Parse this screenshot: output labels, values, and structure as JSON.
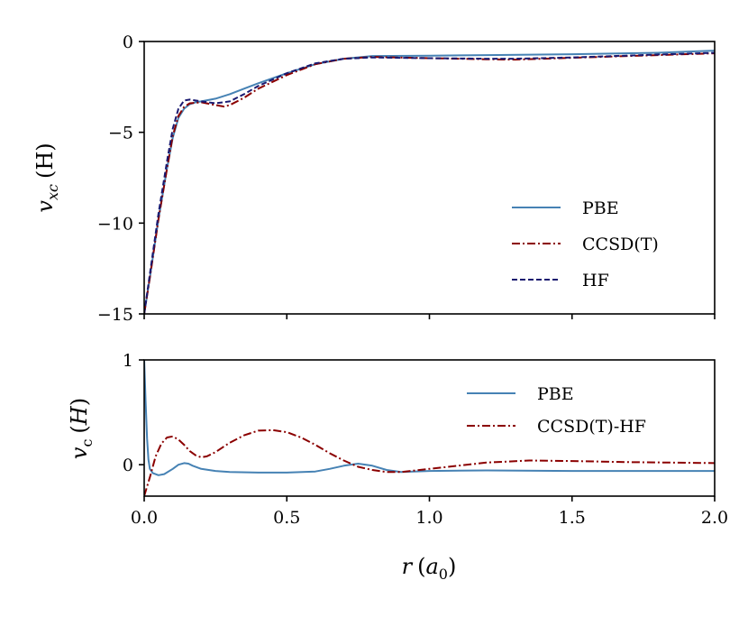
{
  "chart_data": [
    {
      "type": "line",
      "panel": "top",
      "title": "",
      "xlabel": "",
      "ylabel": "v_xc (H)",
      "ylabel_parts": {
        "var": "v",
        "sub": "xc",
        "unit": "(H)"
      },
      "xlim": [
        0.0,
        2.0
      ],
      "ylim": [
        -15,
        0
      ],
      "xticks": [
        0.0,
        0.5,
        1.0,
        1.5,
        2.0
      ],
      "yticks": [
        0,
        -5,
        -10,
        -15
      ],
      "ytick_labels": [
        "0",
        "−5",
        "−10",
        "−15"
      ],
      "legend_position": "center-right",
      "series": [
        {
          "name": "PBE",
          "color": "#4682b4",
          "dash": "solid",
          "x": [
            0.0,
            0.02,
            0.05,
            0.08,
            0.1,
            0.12,
            0.14,
            0.16,
            0.18,
            0.2,
            0.25,
            0.3,
            0.35,
            0.4,
            0.5,
            0.6,
            0.7,
            0.8,
            1.0,
            1.2,
            1.5,
            1.8,
            2.0
          ],
          "y": [
            -15,
            -13.0,
            -9.8,
            -7.0,
            -5.3,
            -4.2,
            -3.7,
            -3.45,
            -3.35,
            -3.3,
            -3.15,
            -2.9,
            -2.6,
            -2.3,
            -1.75,
            -1.25,
            -0.95,
            -0.8,
            -0.78,
            -0.75,
            -0.7,
            -0.62,
            -0.5
          ]
        },
        {
          "name": "CCSD(T)",
          "color": "#8b0000",
          "dash": "dashdot",
          "x": [
            0.0,
            0.02,
            0.05,
            0.08,
            0.1,
            0.12,
            0.14,
            0.16,
            0.2,
            0.25,
            0.28,
            0.3,
            0.35,
            0.4,
            0.5,
            0.6,
            0.7,
            0.8,
            1.0,
            1.2,
            1.3,
            1.5,
            1.8,
            2.0
          ],
          "y": [
            -15,
            -13.0,
            -9.8,
            -7.0,
            -5.2,
            -4.1,
            -3.6,
            -3.4,
            -3.35,
            -3.5,
            -3.58,
            -3.5,
            -3.1,
            -2.6,
            -1.85,
            -1.25,
            -0.95,
            -0.85,
            -0.92,
            -0.98,
            -1.0,
            -0.9,
            -0.75,
            -0.65
          ]
        },
        {
          "name": "HF",
          "color": "#191970",
          "dash": "dashed",
          "x": [
            0.0,
            0.02,
            0.05,
            0.08,
            0.1,
            0.12,
            0.14,
            0.16,
            0.2,
            0.25,
            0.3,
            0.35,
            0.4,
            0.5,
            0.6,
            0.7,
            0.8,
            1.0,
            1.2,
            1.3,
            1.5,
            1.8,
            2.0
          ],
          "y": [
            -15,
            -12.8,
            -9.5,
            -6.6,
            -4.8,
            -3.7,
            -3.25,
            -3.2,
            -3.3,
            -3.4,
            -3.3,
            -2.9,
            -2.45,
            -1.75,
            -1.2,
            -0.95,
            -0.88,
            -0.92,
            -0.95,
            -0.95,
            -0.88,
            -0.72,
            -0.62
          ]
        }
      ]
    },
    {
      "type": "line",
      "panel": "bottom",
      "title": "",
      "xlabel": "r (a_0)",
      "xlabel_parts": {
        "var": "r",
        "unit_var": "a",
        "unit_sub": "0"
      },
      "ylabel": "v_c (H)",
      "ylabel_parts": {
        "var": "v",
        "sub": "c",
        "unit": "H"
      },
      "xlim": [
        0.0,
        2.0
      ],
      "ylim": [
        -0.3,
        1.0
      ],
      "xticks": [
        0.0,
        0.5,
        1.0,
        1.5,
        2.0
      ],
      "xtick_labels": [
        "0.0",
        "0.5",
        "1.0",
        "1.5",
        "2.0"
      ],
      "yticks": [
        0,
        1
      ],
      "ytick_labels": [
        "0",
        "1"
      ],
      "legend_position": "upper-right",
      "series": [
        {
          "name": "PBE",
          "color": "#4682b4",
          "dash": "solid",
          "x": [
            0.0,
            0.005,
            0.01,
            0.015,
            0.02,
            0.03,
            0.05,
            0.07,
            0.1,
            0.12,
            0.14,
            0.155,
            0.17,
            0.2,
            0.25,
            0.3,
            0.4,
            0.5,
            0.6,
            0.65,
            0.7,
            0.75,
            0.8,
            0.85,
            0.9,
            1.0,
            1.2,
            1.5,
            1.8,
            2.0
          ],
          "y": [
            1.0,
            0.6,
            0.25,
            0.05,
            -0.04,
            -0.08,
            -0.1,
            -0.09,
            -0.04,
            0.0,
            0.015,
            0.01,
            -0.01,
            -0.04,
            -0.06,
            -0.07,
            -0.075,
            -0.075,
            -0.065,
            -0.04,
            -0.01,
            0.01,
            -0.01,
            -0.05,
            -0.07,
            -0.06,
            -0.055,
            -0.06,
            -0.06,
            -0.06
          ]
        },
        {
          "name": "CCSD(T)-HF",
          "color": "#8b0000",
          "dash": "dashdot",
          "x": [
            0.0,
            0.02,
            0.04,
            0.06,
            0.08,
            0.1,
            0.12,
            0.14,
            0.16,
            0.18,
            0.2,
            0.22,
            0.25,
            0.3,
            0.35,
            0.4,
            0.45,
            0.5,
            0.55,
            0.6,
            0.65,
            0.7,
            0.75,
            0.8,
            0.85,
            0.9,
            1.0,
            1.1,
            1.2,
            1.35,
            1.5,
            1.7,
            1.85,
            2.0
          ],
          "y": [
            -0.3,
            -0.12,
            0.08,
            0.2,
            0.26,
            0.27,
            0.24,
            0.19,
            0.13,
            0.09,
            0.07,
            0.08,
            0.12,
            0.21,
            0.28,
            0.325,
            0.33,
            0.31,
            0.26,
            0.19,
            0.11,
            0.04,
            -0.02,
            -0.05,
            -0.07,
            -0.07,
            -0.04,
            -0.01,
            0.02,
            0.04,
            0.035,
            0.025,
            0.02,
            0.015
          ]
        }
      ]
    }
  ]
}
